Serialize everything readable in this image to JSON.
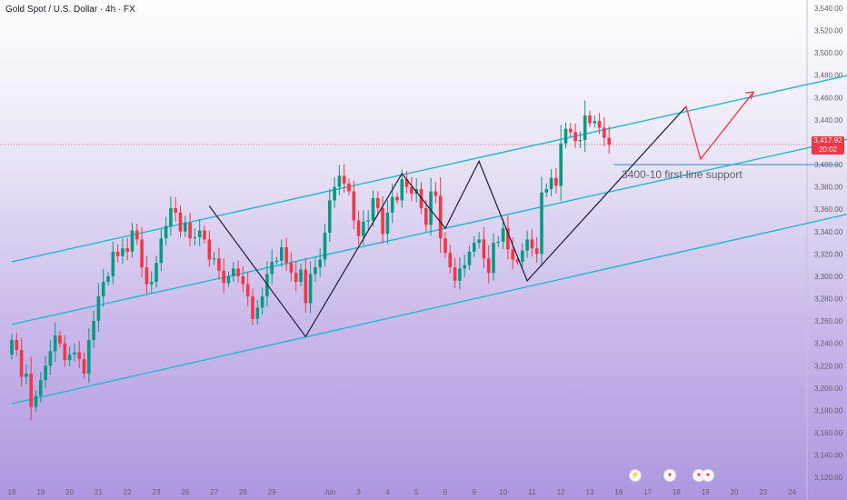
{
  "header": {
    "title": "Gold Spot / U.S. Dollar · 4h · FX"
  },
  "price_badge": {
    "price": "3,417.92",
    "countdown": "20:02"
  },
  "annotation": "3400-10 first-line support",
  "events": {
    "lightning_icon": "⚡",
    "flag_icon": "✦"
  },
  "colors": {
    "up": "#089981",
    "down": "#f23645",
    "channel": "#22b8cf",
    "support": "#4a90c8",
    "zigzag": "#1b1b3a",
    "projection": "#f23645",
    "current_price_line": "#f23645"
  },
  "chart_data": {
    "type": "candlestick",
    "title": "Gold Spot / U.S. Dollar · 4h · FX",
    "y_axis": {
      "position": "right",
      "range": [
        3110,
        3540
      ],
      "tick_values": [
        3540,
        3520,
        3500,
        3480,
        3460,
        3440,
        3420,
        3400,
        3380,
        3360,
        3340,
        3320,
        3300,
        3280,
        3260,
        3240,
        3220,
        3200,
        3180,
        3160,
        3140,
        3120
      ],
      "tick_labels": [
        "3,540.00",
        "3,520.00",
        "3,500.00",
        "3,480.00",
        "3,460.00",
        "3,440.00",
        "3,420.00",
        "3,400.00",
        "3,380.00",
        "3,360.00",
        "3,340.00",
        "3,320.00",
        "3,300.00",
        "3,280.00",
        "3,260.00",
        "3,240.00",
        "3,220.00",
        "3,200.00",
        "3,180.00",
        "3,160.00",
        "3,140.00",
        "3,120.00"
      ]
    },
    "x_axis": {
      "range": [
        0,
        180
      ],
      "tick_labels": [
        "16",
        "19",
        "20",
        "21",
        "22",
        "23",
        "26",
        "27",
        "28",
        "29",
        "Jun",
        "3",
        "4",
        "5",
        "6",
        "9",
        "10",
        "11",
        "12",
        "13",
        "16",
        "17",
        "18",
        "19",
        "20",
        "23",
        "24"
      ],
      "tick_index": [
        0,
        6,
        12,
        18,
        24,
        30,
        36,
        42,
        48,
        54,
        66,
        72,
        78,
        84,
        90,
        96,
        102,
        108,
        114,
        120,
        126,
        132,
        138,
        144,
        150,
        156,
        162
      ]
    },
    "candles": {
      "note": "4h OHLC bars, index = bar number from start of view",
      "open": [
        3230,
        3243,
        3234,
        3210,
        3213,
        3183,
        3193,
        3207,
        3220,
        3233,
        3247,
        3240,
        3225,
        3230,
        3232,
        3226,
        3213,
        3243,
        3260,
        3282,
        3295,
        3300,
        3322,
        3318,
        3325,
        3322,
        3341,
        3333,
        3308,
        3293,
        3295,
        3312,
        3334,
        3345,
        3361,
        3357,
        3340,
        3348,
        3334,
        3335,
        3341,
        3333,
        3315,
        3316,
        3305,
        3294,
        3300,
        3307,
        3300,
        3293,
        3282,
        3262,
        3272,
        3282,
        3302,
        3313,
        3314,
        3326,
        3312,
        3303,
        3295,
        3306,
        3276,
        3302,
        3308,
        3315,
        3339,
        3368,
        3380,
        3390,
        3383,
        3376,
        3350,
        3336,
        3349,
        3350,
        3370,
        3361,
        3338,
        3357,
        3371,
        3368,
        3387,
        3380,
        3374,
        3378,
        3361,
        3346,
        3376,
        3372,
        3334,
        3321,
        3308,
        3296,
        3307,
        3310,
        3322,
        3330,
        3333,
        3316,
        3303,
        3330,
        3331,
        3343,
        3324,
        3315,
        3313,
        3323,
        3333,
        3325,
        3320,
        3375,
        3378,
        3388,
        3381,
        3419,
        3432,
        3429,
        3421,
        3422,
        3444,
        3437,
        3439,
        3433,
        3424
      ],
      "close": [
        3243,
        3234,
        3210,
        3213,
        3183,
        3193,
        3207,
        3220,
        3233,
        3247,
        3240,
        3225,
        3230,
        3232,
        3226,
        3213,
        3243,
        3260,
        3282,
        3295,
        3300,
        3322,
        3318,
        3325,
        3322,
        3341,
        3333,
        3308,
        3293,
        3295,
        3312,
        3334,
        3345,
        3361,
        3357,
        3340,
        3348,
        3334,
        3335,
        3341,
        3333,
        3315,
        3316,
        3305,
        3294,
        3300,
        3307,
        3300,
        3293,
        3282,
        3262,
        3272,
        3282,
        3302,
        3313,
        3314,
        3326,
        3312,
        3303,
        3295,
        3306,
        3276,
        3302,
        3308,
        3315,
        3339,
        3368,
        3380,
        3390,
        3383,
        3376,
        3350,
        3336,
        3349,
        3350,
        3370,
        3361,
        3338,
        3357,
        3371,
        3368,
        3387,
        3380,
        3374,
        3378,
        3361,
        3346,
        3376,
        3372,
        3334,
        3321,
        3308,
        3296,
        3307,
        3310,
        3322,
        3330,
        3333,
        3316,
        3303,
        3330,
        3331,
        3343,
        3324,
        3315,
        3313,
        3323,
        3333,
        3325,
        3320,
        3375,
        3378,
        3388,
        3381,
        3419,
        3432,
        3429,
        3421,
        3422,
        3444,
        3437,
        3439,
        3433,
        3424,
        3418
      ]
    },
    "channel_lines": [
      {
        "name": "upper",
        "x": [
          0,
          180
        ],
        "y": [
          3313,
          3486
        ]
      },
      {
        "name": "middle",
        "x": [
          0,
          180
        ],
        "y": [
          3257,
          3429
        ]
      },
      {
        "name": "lower",
        "x": [
          0,
          180
        ],
        "y": [
          3186,
          3362
        ]
      }
    ],
    "support_line": {
      "x": [
        125,
        172
      ],
      "y": [
        3400,
        3400
      ]
    },
    "zigzag": {
      "x": [
        41,
        61,
        81,
        90,
        97,
        107,
        140
      ],
      "y": [
        3363,
        3246,
        3392,
        3343,
        3403,
        3296,
        3452
      ]
    },
    "projection": {
      "x": [
        140,
        143,
        154
      ],
      "y": [
        3452,
        3405,
        3465
      ]
    },
    "current_price": 3417.92
  }
}
